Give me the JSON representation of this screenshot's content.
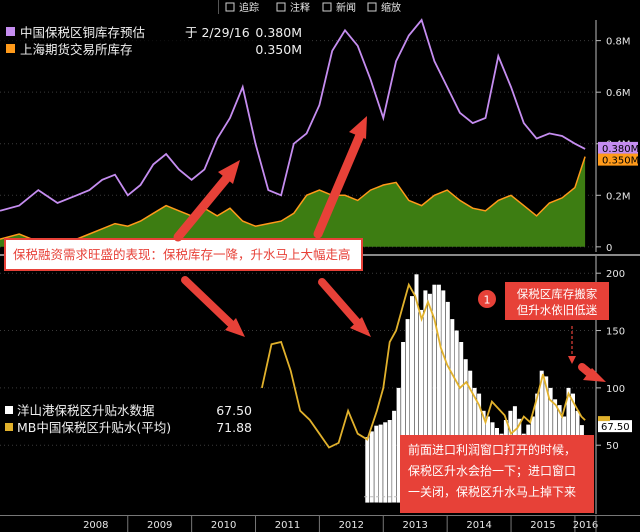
{
  "toolbar": {
    "buttons": [
      {
        "id": "trace",
        "label": "追踪",
        "icon": "trace-icon"
      },
      {
        "id": "annotate",
        "label": "注释",
        "icon": "annotate-icon"
      },
      {
        "id": "news",
        "label": "新闻",
        "icon": "news-icon"
      },
      {
        "id": "zoom",
        "label": "缩放",
        "icon": "zoom-icon"
      }
    ]
  },
  "colors": {
    "purple": "#c58df0",
    "orange": "#ff9a1a",
    "green": "#3d7d12",
    "yellow": "#e1b12c",
    "white": "#ffffff",
    "red_annotation": "#e74138",
    "grid": "#3a3a3a",
    "divider": "#8a8a8a"
  },
  "x_axis": {
    "labels": [
      "2008",
      "2009",
      "2010",
      "2011",
      "2012",
      "2013",
      "2014",
      "2015",
      "2016"
    ]
  },
  "annotations": {
    "main_label": "保税融资需求旺盛的表现：保税库存一降，升水马上大幅走高",
    "badge": "1",
    "note_top_line1": "保税区库存搬家",
    "note_top_line2": "但升水依旧低迷",
    "note_bottom_lines": [
      "前面进口利润窗口打开的时候，",
      "保税区升水会抬一下；进口窗口",
      "一关闭，保税区升水马上掉下来"
    ]
  },
  "chart_data": [
    {
      "type": "area",
      "panel": "top",
      "legend": [
        {
          "name": "中国保税区铜库存预估",
          "date": "于 2/29/16",
          "value": "0.380M",
          "color": "#c58df0"
        },
        {
          "name": "上海期货交易所库存",
          "date": "",
          "value": "0.350M",
          "color": "#ff9a1a"
        }
      ],
      "y_ticks": [
        0,
        0.2,
        0.4,
        0.6,
        0.8
      ],
      "y_tick_labels": [
        "0",
        "0.2M",
        "0.4M",
        "0.6M",
        "0.8M"
      ],
      "ylim": [
        -0.02,
        0.88
      ],
      "last_value_labels": [
        {
          "text": "0.380M",
          "value": 0.38,
          "color": "#c58df0"
        },
        {
          "text": "0.350M",
          "value": 0.35,
          "color": "#ff9a1a"
        }
      ],
      "series": [
        {
          "name": "中国保税区铜库存预估",
          "style": "line",
          "x": [
            2007.0,
            2007.3,
            2007.6,
            2007.9,
            2008.2,
            2008.4,
            2008.6,
            2008.8,
            2009.0,
            2009.2,
            2009.4,
            2009.6,
            2009.8,
            2010.0,
            2010.2,
            2010.4,
            2010.6,
            2010.8,
            2011.0,
            2011.2,
            2011.4,
            2011.6,
            2011.8,
            2012.0,
            2012.2,
            2012.4,
            2012.6,
            2012.8,
            2013.0,
            2013.2,
            2013.4,
            2013.6,
            2013.8,
            2014.0,
            2014.2,
            2014.4,
            2014.6,
            2014.8,
            2015.0,
            2015.2,
            2015.4,
            2015.6,
            2015.8,
            2016.0,
            2016.16
          ],
          "y": [
            0.14,
            0.16,
            0.22,
            0.17,
            0.2,
            0.22,
            0.26,
            0.28,
            0.2,
            0.24,
            0.32,
            0.36,
            0.3,
            0.26,
            0.3,
            0.42,
            0.5,
            0.62,
            0.4,
            0.22,
            0.2,
            0.4,
            0.44,
            0.55,
            0.76,
            0.84,
            0.78,
            0.65,
            0.5,
            0.72,
            0.82,
            0.88,
            0.72,
            0.62,
            0.52,
            0.48,
            0.5,
            0.74,
            0.62,
            0.48,
            0.42,
            0.44,
            0.43,
            0.4,
            0.38
          ]
        },
        {
          "name": "上海期货交易所库存",
          "style": "area",
          "x": [
            2007.0,
            2007.3,
            2007.6,
            2007.9,
            2008.2,
            2008.4,
            2008.6,
            2008.8,
            2009.0,
            2009.2,
            2009.4,
            2009.6,
            2009.8,
            2010.0,
            2010.2,
            2010.4,
            2010.6,
            2010.8,
            2011.0,
            2011.2,
            2011.4,
            2011.6,
            2011.8,
            2012.0,
            2012.2,
            2012.4,
            2012.6,
            2012.8,
            2013.0,
            2013.2,
            2013.4,
            2013.6,
            2013.8,
            2014.0,
            2014.2,
            2014.4,
            2014.6,
            2014.8,
            2015.0,
            2015.2,
            2015.4,
            2015.6,
            2015.8,
            2016.0,
            2016.16
          ],
          "y": [
            0.03,
            0.05,
            0.02,
            0.03,
            0.03,
            0.05,
            0.07,
            0.09,
            0.08,
            0.1,
            0.13,
            0.16,
            0.14,
            0.12,
            0.15,
            0.12,
            0.15,
            0.1,
            0.08,
            0.09,
            0.1,
            0.13,
            0.2,
            0.22,
            0.2,
            0.2,
            0.18,
            0.22,
            0.24,
            0.25,
            0.18,
            0.16,
            0.2,
            0.22,
            0.18,
            0.15,
            0.14,
            0.18,
            0.2,
            0.16,
            0.12,
            0.17,
            0.19,
            0.23,
            0.35
          ]
        }
      ]
    },
    {
      "type": "bar",
      "panel": "bottom",
      "legend": [
        {
          "name": "洋山港保税区升贴水数据",
          "value": "67.50",
          "color": "#ffffff"
        },
        {
          "name": "MB中国保税区升贴水(平均)",
          "value": "71.88",
          "color": "#e1b12c"
        }
      ],
      "y_ticks": [
        50,
        100,
        150,
        200
      ],
      "y_tick_labels": [
        "50",
        "100",
        "150",
        "200"
      ],
      "ylim": [
        -10,
        215
      ],
      "last_value_labels": [
        {
          "text": "67.50",
          "value": 67.5,
          "color": "#ffffff"
        },
        {
          "text": "",
          "value": 71.88,
          "color": "#e1b12c"
        }
      ],
      "series": [
        {
          "name": "MB中国保税区升贴水(平均)",
          "style": "line",
          "x": [
            2011.1,
            2011.25,
            2011.4,
            2011.55,
            2011.7,
            2011.85,
            2012.0,
            2012.15,
            2012.3,
            2012.45,
            2012.6,
            2012.75,
            2012.9,
            2013.0,
            2013.1,
            2013.2,
            2013.3,
            2013.4,
            2013.5,
            2013.6,
            2013.7,
            2013.8,
            2013.9,
            2014.0,
            2014.1,
            2014.2,
            2014.3,
            2014.4,
            2014.5,
            2014.6,
            2014.7,
            2014.8,
            2014.9,
            2015.0,
            2015.1,
            2015.2,
            2015.3,
            2015.4,
            2015.5,
            2015.6,
            2015.7,
            2015.8,
            2015.9,
            2016.0,
            2016.1,
            2016.16
          ],
          "y": [
            100,
            138,
            140,
            115,
            80,
            72,
            60,
            48,
            52,
            80,
            60,
            55,
            80,
            100,
            140,
            150,
            170,
            190,
            180,
            160,
            175,
            160,
            135,
            120,
            110,
            100,
            105,
            95,
            85,
            70,
            88,
            82,
            76,
            60,
            65,
            75,
            70,
            90,
            112,
            90,
            85,
            75,
            95,
            85,
            75,
            71.88
          ]
        },
        {
          "name": "洋山港保税区升贴水数据",
          "style": "bar",
          "x": [
            2012.75,
            2012.82,
            2012.89,
            2012.96,
            2013.03,
            2013.1,
            2013.17,
            2013.24,
            2013.31,
            2013.38,
            2013.45,
            2013.52,
            2013.59,
            2013.66,
            2013.73,
            2013.8,
            2013.87,
            2013.94,
            2014.01,
            2014.08,
            2014.15,
            2014.22,
            2014.29,
            2014.36,
            2014.43,
            2014.5,
            2014.57,
            2014.64,
            2014.71,
            2014.78,
            2014.85,
            2014.92,
            2014.99,
            2015.06,
            2015.13,
            2015.2,
            2015.27,
            2015.34,
            2015.41,
            2015.48,
            2015.55,
            2015.62,
            2015.69,
            2015.76,
            2015.83,
            2015.9,
            2015.97,
            2016.04,
            2016.11
          ],
          "y": [
            57,
            62,
            67,
            68,
            70,
            72,
            80,
            100,
            140,
            160,
            180,
            199,
            168,
            185,
            182,
            190,
            190,
            185,
            175,
            160,
            150,
            140,
            125,
            115,
            100,
            95,
            80,
            75,
            70,
            65,
            60,
            72,
            80,
            84,
            73,
            60,
            68,
            75,
            95,
            115,
            110,
            100,
            90,
            85,
            75,
            100,
            95,
            80,
            67.5
          ]
        }
      ],
      "reference_line": {
        "value": 5,
        "x_from": 2012.7,
        "x_to": 2013.85,
        "style": "dashed"
      }
    }
  ]
}
